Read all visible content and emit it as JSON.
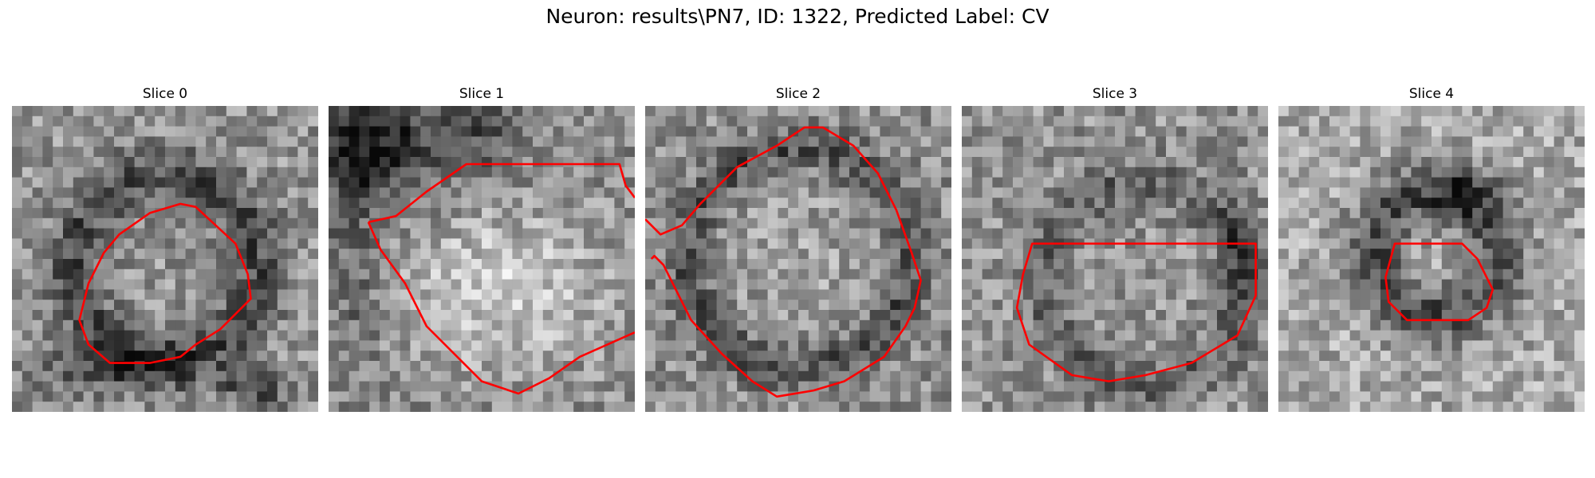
{
  "figure": {
    "title": "Neuron: results\\PN7, ID: 1322, Predicted Label: CV"
  },
  "slices": [
    {
      "title": "Slice 0"
    },
    {
      "title": "Slice 1"
    },
    {
      "title": "Slice 2"
    },
    {
      "title": "Slice 3"
    },
    {
      "title": "Slice 4"
    }
  ],
  "colors": {
    "contour": "#ff0000",
    "background": "#ffffff"
  },
  "colormap": "gray"
}
